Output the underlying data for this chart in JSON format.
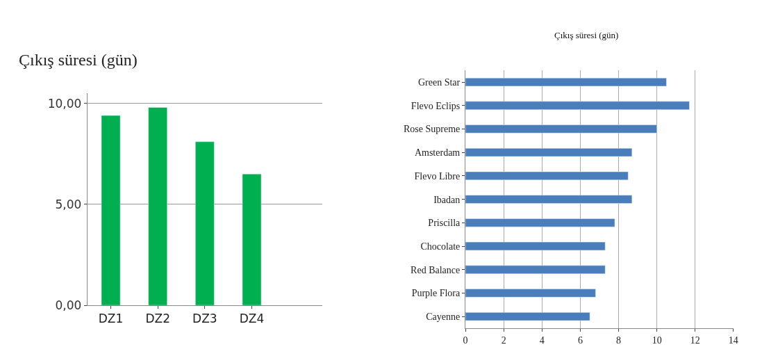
{
  "chart_data": [
    {
      "type": "bar",
      "title": "Çıkış süresi (gün)",
      "categories": [
        "DZ1",
        "DZ2",
        "DZ3",
        "DZ4"
      ],
      "values": [
        9.4,
        9.8,
        8.1,
        6.5
      ],
      "color": "#00b050",
      "ylim": [
        0,
        10.5
      ],
      "yticks": [
        {
          "value": 0,
          "label": "0,00"
        },
        {
          "value": 5,
          "label": "5,00"
        },
        {
          "value": 10,
          "label": "10,00"
        }
      ],
      "grid": "y"
    },
    {
      "type": "bar",
      "title": "Çıkış süresi (gün)",
      "orientation": "horizontal",
      "categories": [
        "Green Star",
        "Flevo Eclips",
        "Rose Supreme",
        "Amsterdam",
        "Flevo Libre",
        "Ibadan",
        "Priscilla",
        "Chocolate",
        "Red Balance",
        "Purple Flora",
        "Cayenne"
      ],
      "values": [
        10.5,
        11.7,
        10.0,
        8.7,
        8.5,
        8.7,
        7.8,
        7.3,
        7.3,
        6.8,
        6.5
      ],
      "color": "#4a7ebb",
      "xlim": [
        0,
        14
      ],
      "xticks": [
        0,
        2,
        4,
        6,
        8,
        10,
        12,
        14
      ],
      "grid": "x"
    }
  ]
}
